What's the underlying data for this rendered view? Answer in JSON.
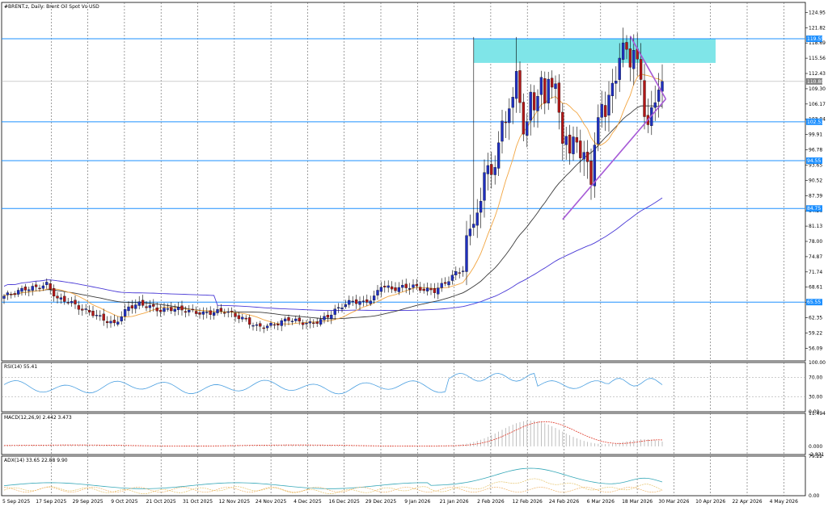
{
  "chart_data": [
    {
      "type": "candlestick",
      "title": "#BRENT.z, Daily:  Brent Oil Spot Vs USD",
      "ylim": [
        53.5,
        127
      ],
      "y_ticks": [
        "124.95",
        "121.82",
        "118.69",
        "115.56",
        "112.43",
        "109.30",
        "106.17",
        "103.04",
        "99.91",
        "96.78",
        "93.65",
        "90.52",
        "87.39",
        "84.26",
        "81.13",
        "78.00",
        "74.87",
        "71.74",
        "68.61",
        "65.48",
        "62.35",
        "59.22",
        "56.09"
      ],
      "x_ticks": [
        "5 Sep 2025",
        "17 Sep 2025",
        "29 Sep 2025",
        "9 Oct 2025",
        "21 Oct 2025",
        "31 Oct 2025",
        "12 Nov 2025",
        "24 Nov 2025",
        "4 Dec 2025",
        "16 Dec 2025",
        "29 Dec 2025",
        "9 Jan 2026",
        "21 Jan 2026",
        "2 Feb 2026",
        "12 Feb 2026",
        "24 Feb 2026",
        "6 Mar 2026",
        "18 Mar 2026",
        "30 Mar 2026",
        "10 Apr 2026",
        "22 Apr 2026",
        "4 May 2026"
      ],
      "price_labels": [
        {
          "text": "119.55",
          "y": 119.55,
          "color": "#1e90ff"
        },
        {
          "text": "110.80",
          "y": 110.8,
          "color": "#808080"
        },
        {
          "text": "102.53",
          "y": 102.53,
          "color": "#1e90ff"
        },
        {
          "text": "94.55",
          "y": 94.55,
          "color": "#1e90ff"
        },
        {
          "text": "84.75",
          "y": 84.75,
          "color": "#1e90ff"
        },
        {
          "text": "65.55",
          "y": 65.55,
          "color": "#1e90ff"
        }
      ],
      "h_lines": [
        119.55,
        102.53,
        94.55,
        84.75,
        65.55
      ],
      "zone": {
        "top": 119.55,
        "bottom": 114.6,
        "from_index": 132,
        "to_index": 200,
        "color": "#7fe5e8"
      },
      "trend_lines": [
        {
          "from_index": 157,
          "from_y": 82.5,
          "to_index": 186,
          "to_y": 107.2
        },
        {
          "from_index": 176,
          "from_y": 120.1,
          "to_index": 186,
          "to_y": 107.2
        }
      ],
      "ohlc": []
    },
    {
      "type": "line",
      "title": "RSI(14) 55.41",
      "ylim": [
        0,
        100
      ],
      "y_ticks": [
        "100.00",
        "70.00",
        "30.00",
        "0.00"
      ],
      "values": []
    },
    {
      "type": "bar",
      "title": "MACD(12,26,9) 2.442 3.473",
      "ylim": [
        -2.831,
        11.494
      ],
      "y_ticks": [
        "11.494",
        "0.000",
        "-2.831"
      ],
      "values": []
    },
    {
      "type": "line",
      "title": "ADX(14) 33.65 22.88 9.90",
      "ylim": [
        0,
        79.22
      ],
      "y_ticks": [
        "79.22",
        "0.00"
      ],
      "values": []
    }
  ],
  "colors": {
    "bull": "#1f2fbf",
    "bear": "#b01818",
    "grid": "#606060",
    "hline": "#1e90ff",
    "ma_fast": "#f2a541",
    "ma_mid": "#3a3a3a",
    "ma_slow": "#4a3ad6",
    "trend": "#a65ad6",
    "rsi": "#4a9fe0",
    "macd_hist": "#b0b0b0",
    "macd_signal": "#e03a2a",
    "adx": "#36a8b8",
    "di_plus": "#e5c46a",
    "di_minus": "#f0b46a"
  }
}
